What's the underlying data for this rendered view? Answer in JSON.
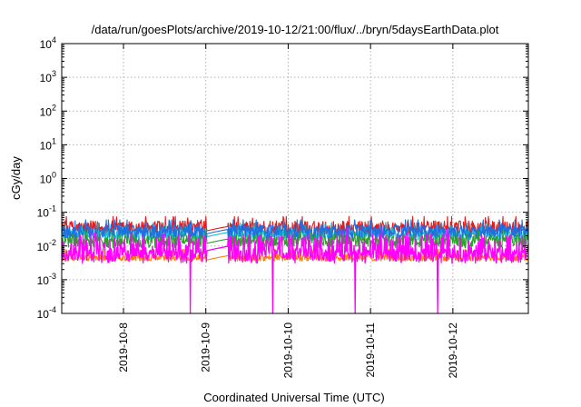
{
  "chart_data": {
    "type": "line",
    "title": "/data/run/goesPlots/archive/2019-10-12/21:00/flux/../bryn/5daysEarthData.plot",
    "xlabel": "Coordinated Universal Time (UTC)",
    "ylabel": "cGy/day",
    "yscale": "log",
    "ylim": [
      0.0001,
      10000
    ],
    "xlim": [
      "2019-10-07T06:00",
      "2019-10-12T22:00"
    ],
    "grid": true,
    "x_ticks": [
      "2019-10-8",
      "2019-10-9",
      "2019-10-10",
      "2019-10-11",
      "2019-10-12"
    ],
    "y_ticks": [
      {
        "value": 0.0001,
        "base": "10",
        "exp": "-4"
      },
      {
        "value": 0.001,
        "base": "10",
        "exp": "-3"
      },
      {
        "value": 0.01,
        "base": "10",
        "exp": "-2"
      },
      {
        "value": 0.1,
        "base": "10",
        "exp": "-1"
      },
      {
        "value": 1,
        "base": "10",
        "exp": "0"
      },
      {
        "value": 10,
        "base": "10",
        "exp": "1"
      },
      {
        "value": 100,
        "base": "10",
        "exp": "2"
      },
      {
        "value": 1000,
        "base": "10",
        "exp": "3"
      },
      {
        "value": 10000,
        "base": "10",
        "exp": "4"
      }
    ],
    "gap": [
      "2019-10-09T00:15",
      "2019-10-09T06:30"
    ],
    "dropouts": [
      "2019-10-08T19:30",
      "2019-10-09T19:30",
      "2019-10-10T19:30",
      "2019-10-11T19:30"
    ],
    "series": [
      {
        "color": "#e41a1c",
        "base": 0.033,
        "spread": 0.45,
        "spike_max": 0.075
      },
      {
        "color": "#17becf",
        "base": 0.022,
        "spread": 0.35,
        "spike_max": 0.05
      },
      {
        "color": "#2ca02c",
        "base": 0.014,
        "spread": 0.4,
        "spike_max": 0.03
      },
      {
        "color": "#ff7f0e",
        "base": 0.0045,
        "spread": 0.2,
        "spike_max": 0.008
      },
      {
        "color": "#1f6fe0",
        "base": 0.027,
        "spread": 0.4,
        "spike_max": 0.06
      },
      {
        "color": "#ff00ff",
        "base": 0.0085,
        "spread": 0.9,
        "spike_max": 0.035
      }
    ]
  }
}
